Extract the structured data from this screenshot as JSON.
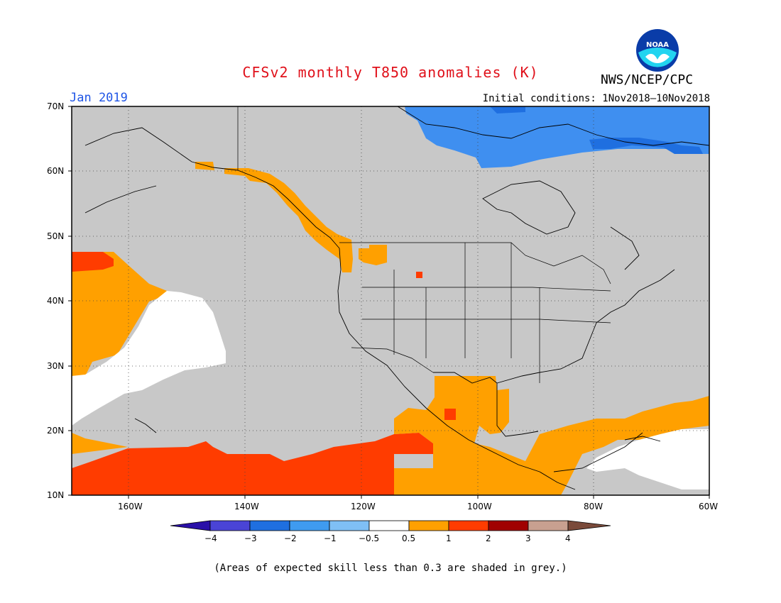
{
  "title": "CFSv2 monthly T850 anomalies (K)",
  "agency": "NWS/NCEP/CPC",
  "logo_text": "NOAA",
  "month": "Jan 2019",
  "initial_conditions": "Initial conditions: 1Nov2018–10Nov2018",
  "footnote": "(Areas of expected skill less than 0.3 are shaded in grey.)",
  "map": {
    "lat_labels": [
      "70N",
      "60N",
      "50N",
      "40N",
      "30N",
      "20N",
      "10N"
    ],
    "lon_labels": [
      "160W",
      "140W",
      "120W",
      "100W",
      "80W",
      "60W"
    ],
    "skill_mask_color": "#c8c8c8",
    "coastline_color": "#000000",
    "gridlines": "dotted"
  },
  "colorbar": {
    "labels": [
      "−4",
      "−3",
      "−2",
      "−1",
      "−0.5",
      "0.5",
      "1",
      "2",
      "3",
      "4"
    ],
    "colors": [
      "#2a10a8",
      "#4a44d6",
      "#1f6fe0",
      "#3f9bf0",
      "#7fbff5",
      "#ffffff",
      "#ffa000",
      "#ff3c00",
      "#a00000",
      "#c8a090",
      "#7a4a3a"
    ]
  },
  "anomaly_regions": [
    {
      "name": "arctic-canada-negative",
      "category": "-1 to -0.5",
      "color": "#3f8ff0"
    },
    {
      "name": "baffin-negative",
      "category": "-2 to -1",
      "color": "#1f6fe0"
    },
    {
      "name": "alaska-coast-positive",
      "category": "0.5 to 1",
      "color": "#ffa000"
    },
    {
      "name": "pacific-northwest-positive",
      "category": "0.5 to 1",
      "color": "#ffa000"
    },
    {
      "name": "wyoming-positive",
      "category": "1 to 2",
      "color": "#ff3c00"
    },
    {
      "name": "north-pacific-west-positive",
      "category": "0.5 to 1",
      "color": "#ffa000"
    },
    {
      "name": "north-pacific-white",
      "category": "-0.5 to 0.5",
      "color": "#ffffff"
    },
    {
      "name": "tropical-pacific-positive",
      "category": "1 to 2",
      "color": "#ff3c00"
    },
    {
      "name": "mexico-positive",
      "category": "0.5 to 1",
      "color": "#ffa000"
    },
    {
      "name": "caribbean-positive",
      "category": "0.5 to 1",
      "color": "#ffa000"
    },
    {
      "name": "caribbean-white",
      "category": "-0.5 to 0.5",
      "color": "#ffffff"
    }
  ]
}
